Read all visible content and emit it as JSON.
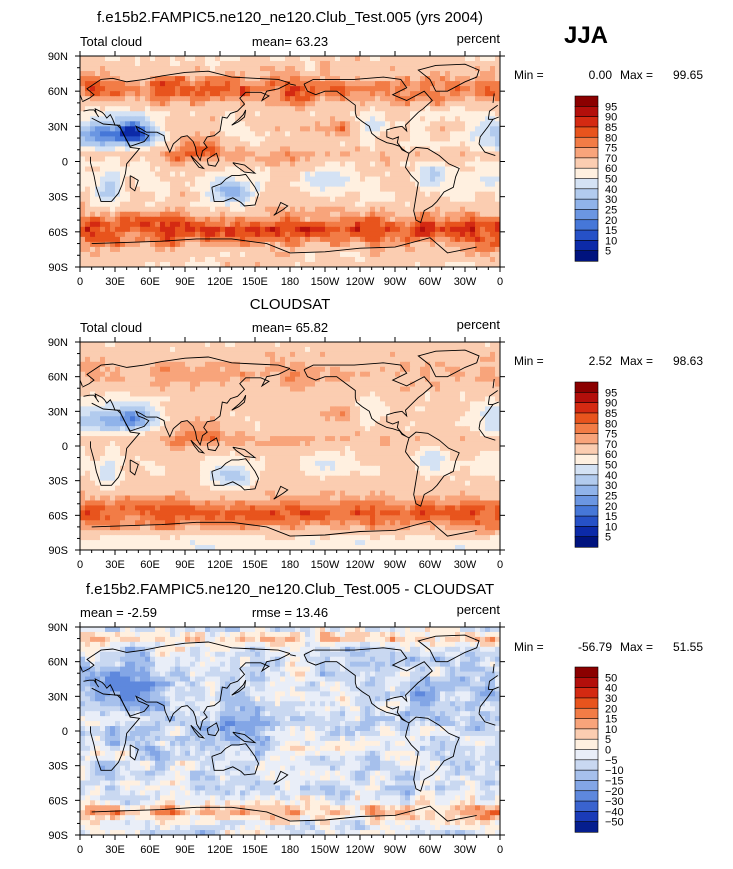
{
  "season": "JJA",
  "chart_data": [
    {
      "type": "heatmap",
      "title": "f.e15b2.FAMPIC5.ne120_ne120.Club_Test.005 (yrs 2004)",
      "left_label": "Total cloud",
      "center_label": "mean=   63.23",
      "right_label": "percent",
      "min_label": "Min =",
      "min_value": "0.00",
      "max_label": "Max =",
      "max_value": "99.65",
      "mean": 63.23,
      "min": 0.0,
      "max": 99.65,
      "field": "model",
      "colorbar": {
        "labels": [
          "95",
          "90",
          "85",
          "80",
          "75",
          "70",
          "60",
          "50",
          "40",
          "30",
          "25",
          "20",
          "15",
          "10",
          "5"
        ],
        "colors": [
          "#8b0000",
          "#b30f0b",
          "#d42a12",
          "#e8541d",
          "#f27c46",
          "#f8a47b",
          "#fbcdb1",
          "#fff0e0",
          "#d4e2f4",
          "#b2cbee",
          "#90b3ea",
          "#6b96e2",
          "#4677d8",
          "#2651c7",
          "#0c2aa8",
          "#00137e"
        ]
      },
      "x_ticks": [
        "0",
        "30E",
        "60E",
        "90E",
        "120E",
        "150E",
        "180",
        "150W",
        "120W",
        "90W",
        "60W",
        "30W",
        "0"
      ],
      "y_ticks": [
        "90N",
        "60N",
        "30N",
        "0",
        "30S",
        "60S",
        "90S"
      ]
    },
    {
      "type": "heatmap",
      "title": "CLOUDSAT",
      "left_label": "Total cloud",
      "center_label": "mean=   65.82",
      "right_label": "percent",
      "min_label": "Min =",
      "min_value": "2.52",
      "max_label": "Max =",
      "max_value": "98.63",
      "mean": 65.82,
      "min": 2.52,
      "max": 98.63,
      "field": "obs",
      "colorbar": {
        "labels": [
          "95",
          "90",
          "85",
          "80",
          "75",
          "70",
          "60",
          "50",
          "40",
          "30",
          "25",
          "20",
          "15",
          "10",
          "5"
        ],
        "colors": [
          "#8b0000",
          "#b30f0b",
          "#d42a12",
          "#e8541d",
          "#f27c46",
          "#f8a47b",
          "#fbcdb1",
          "#fff0e0",
          "#d4e2f4",
          "#b2cbee",
          "#90b3ea",
          "#6b96e2",
          "#4677d8",
          "#2651c7",
          "#0c2aa8",
          "#00137e"
        ]
      },
      "x_ticks": [
        "0",
        "30E",
        "60E",
        "90E",
        "120E",
        "150E",
        "180",
        "150W",
        "120W",
        "90W",
        "60W",
        "30W",
        "0"
      ],
      "y_ticks": [
        "90N",
        "60N",
        "30N",
        "0",
        "30S",
        "60S",
        "90S"
      ]
    },
    {
      "type": "heatmap",
      "title": "f.e15b2.FAMPIC5.ne120_ne120.Club_Test.005 - CLOUDSAT",
      "left_label": "mean =   -2.59",
      "center_label": "rmse =   13.46",
      "right_label": "percent",
      "min_label": "Min =",
      "min_value": "-56.79",
      "max_label": "Max =",
      "max_value": "51.55",
      "mean": -2.59,
      "rmse": 13.46,
      "min": -56.79,
      "max": 51.55,
      "field": "diff",
      "colorbar": {
        "labels": [
          "50",
          "40",
          "30",
          "20",
          "15",
          "10",
          "5",
          "0",
          "−5",
          "−10",
          "−15",
          "−20",
          "−30",
          "−40",
          "−50"
        ],
        "colors": [
          "#8b0000",
          "#b30f0b",
          "#d42a12",
          "#e8541d",
          "#f27c46",
          "#f8a47b",
          "#fbcdb1",
          "#fff0e0",
          "#e9eef8",
          "#c9d8f1",
          "#a6c0ec",
          "#83a6e6",
          "#5e88dd",
          "#3a63cf",
          "#1a3bb8",
          "#051e8e"
        ]
      },
      "x_ticks": [
        "0",
        "30E",
        "60E",
        "90E",
        "120E",
        "150E",
        "180",
        "150W",
        "120W",
        "90W",
        "60W",
        "30W",
        "0"
      ],
      "y_ticks": [
        "90N",
        "60N",
        "30N",
        "0",
        "30S",
        "60S",
        "90S"
      ]
    }
  ]
}
